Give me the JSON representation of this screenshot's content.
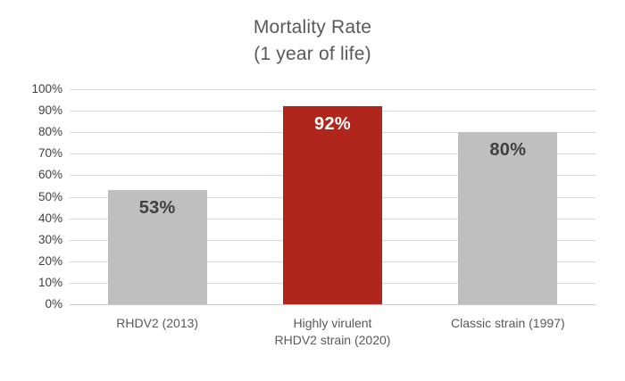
{
  "title": {
    "line1": "Mortality Rate",
    "line2": "(1 year of life)"
  },
  "chart_data": {
    "type": "bar",
    "title": "Mortality Rate",
    "subtitle": "(1 year of life)",
    "categories": [
      "RHDV2 (2013)",
      "Highly virulent RHDV2 strain (2020)",
      "Classic strain (1997)"
    ],
    "category_lines": [
      [
        "RHDV2 (2013)"
      ],
      [
        "Highly virulent",
        "RHDV2 strain (2020)"
      ],
      [
        "Classic strain (1997)"
      ]
    ],
    "values": [
      53,
      92,
      80
    ],
    "data_labels": [
      "53%",
      "92%",
      "80%"
    ],
    "bar_colors": [
      "#BFBFBF",
      "#B1261C",
      "#BFBFBF"
    ],
    "data_label_colors": [
      "#404040",
      "#FFFFFF",
      "#404040"
    ],
    "ylim": [
      0,
      100
    ],
    "ytick_step": 10,
    "ytick_labels": [
      "0%",
      "10%",
      "20%",
      "30%",
      "40%",
      "50%",
      "60%",
      "70%",
      "80%",
      "90%",
      "100%"
    ],
    "grid": true,
    "legend": "none",
    "colors": {
      "gridline": "#D9D9D9",
      "axis_label": "#404040",
      "category_label": "#595959",
      "title": "#595959",
      "background": "#FFFFFF"
    }
  }
}
